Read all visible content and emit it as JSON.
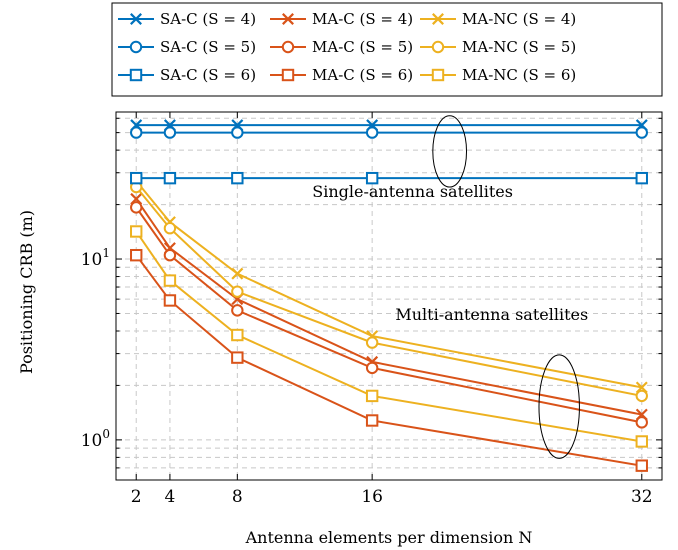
{
  "chart_data": {
    "type": "line",
    "xlabel": "Antenna elements per dimension N",
    "ylabel": "Positioning CRB (m)",
    "x": [
      2,
      4,
      8,
      16,
      32
    ],
    "xticks": [
      "2",
      "4",
      "8",
      "16",
      "32"
    ],
    "xlim": [
      0.8,
      33.2
    ],
    "ylim": [
      0.6,
      65
    ],
    "yscale": "log",
    "yticks": [
      {
        "value": 1,
        "base": "10",
        "exp": "0"
      },
      {
        "value": 10,
        "base": "10",
        "exp": "1"
      }
    ],
    "grid": true,
    "legend_position": "top",
    "series": [
      {
        "name": "SA-C (S = 4)",
        "color": "#0072BD",
        "marker": "x",
        "values": [
          55,
          55,
          55,
          55,
          55
        ]
      },
      {
        "name": "MA-C (S = 4)",
        "color": "#D95319",
        "marker": "x",
        "values": [
          21.5,
          11.5,
          6.0,
          2.7,
          1.38
        ]
      },
      {
        "name": "MA-NC (S = 4)",
        "color": "#EDB120",
        "marker": "x",
        "values": [
          27.0,
          16.0,
          8.3,
          3.75,
          1.95
        ]
      },
      {
        "name": "SA-C (S = 5)",
        "color": "#0072BD",
        "marker": "circle",
        "values": [
          50,
          50,
          50,
          50,
          50
        ]
      },
      {
        "name": "MA-C (S = 5)",
        "color": "#D95319",
        "marker": "circle",
        "values": [
          19.3,
          10.5,
          5.2,
          2.5,
          1.25
        ]
      },
      {
        "name": "MA-NC (S = 5)",
        "color": "#EDB120",
        "marker": "circle",
        "values": [
          25.0,
          14.8,
          6.6,
          3.45,
          1.75
        ]
      },
      {
        "name": "SA-C (S = 6)",
        "color": "#0072BD",
        "marker": "square",
        "values": [
          28,
          28,
          28,
          28,
          28
        ]
      },
      {
        "name": "MA-C (S = 6)",
        "color": "#D95319",
        "marker": "square",
        "values": [
          10.5,
          5.9,
          2.85,
          1.28,
          0.72
        ]
      },
      {
        "name": "MA-NC (S = 6)",
        "color": "#EDB120",
        "marker": "square",
        "values": [
          14.2,
          7.6,
          3.8,
          1.75,
          0.98
        ]
      }
    ],
    "annotations": [
      {
        "text": "Single-antenna satellites",
        "x": 18.4,
        "y": 22
      },
      {
        "text": "Multi-antenna satellites",
        "x": 23.1,
        "y": 4.6
      }
    ],
    "ellipses": [
      {
        "cx": 20.6,
        "cy": 40,
        "rx": 1.0,
        "ry_top": 62,
        "ry_bottom": 25
      },
      {
        "cx": 27.1,
        "cy": 1.55,
        "rx": 1.2,
        "ry_top": 2.95,
        "ry_bottom": 0.79
      }
    ]
  }
}
